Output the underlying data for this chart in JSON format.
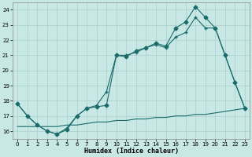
{
  "bg_color": "#c8e8e5",
  "line_color": "#1a6b6b",
  "grid_color": "#aacfcc",
  "xlim": [
    -0.5,
    23.5
  ],
  "ylim": [
    15.5,
    24.5
  ],
  "yticks": [
    16,
    17,
    18,
    19,
    20,
    21,
    22,
    23,
    24
  ],
  "xticks": [
    0,
    1,
    2,
    3,
    4,
    5,
    6,
    7,
    8,
    9,
    10,
    11,
    12,
    13,
    14,
    15,
    16,
    17,
    18,
    19,
    20,
    21,
    22,
    23
  ],
  "xlabel": "Humidex (Indice chaleur)",
  "line1_x": [
    0,
    1,
    2,
    3,
    4,
    5,
    6,
    7,
    8,
    9,
    10,
    11,
    12,
    13,
    14,
    15,
    16,
    17,
    18,
    19,
    20,
    21,
    22,
    23
  ],
  "line1_y": [
    17.8,
    17.0,
    16.4,
    16.0,
    15.8,
    16.1,
    17.0,
    17.5,
    17.6,
    17.7,
    21.0,
    20.9,
    21.3,
    21.5,
    21.8,
    21.6,
    22.8,
    23.2,
    24.2,
    23.5,
    22.8,
    21.0,
    19.2,
    17.5
  ],
  "line2_x": [
    0,
    1,
    2,
    3,
    4,
    5,
    6,
    7,
    8,
    9,
    10,
    11,
    12,
    13,
    14,
    15,
    16,
    17,
    18,
    19,
    20,
    21,
    22,
    23
  ],
  "line2_y": [
    17.8,
    17.0,
    16.4,
    16.0,
    15.8,
    16.2,
    17.0,
    17.5,
    17.7,
    18.6,
    21.0,
    21.0,
    21.2,
    21.5,
    21.7,
    21.5,
    22.2,
    22.5,
    23.5,
    22.8,
    22.8,
    21.0,
    19.2,
    17.5
  ],
  "line3_x": [
    0,
    1,
    2,
    3,
    4,
    5,
    6,
    7,
    8,
    9,
    10,
    11,
    12,
    13,
    14,
    15,
    16,
    17,
    18,
    19,
    20,
    21,
    22,
    23
  ],
  "line3_y": [
    16.3,
    16.3,
    16.3,
    16.3,
    16.3,
    16.4,
    16.4,
    16.5,
    16.6,
    16.6,
    16.7,
    16.7,
    16.8,
    16.8,
    16.9,
    16.9,
    17.0,
    17.0,
    17.1,
    17.1,
    17.2,
    17.3,
    17.4,
    17.5
  ]
}
